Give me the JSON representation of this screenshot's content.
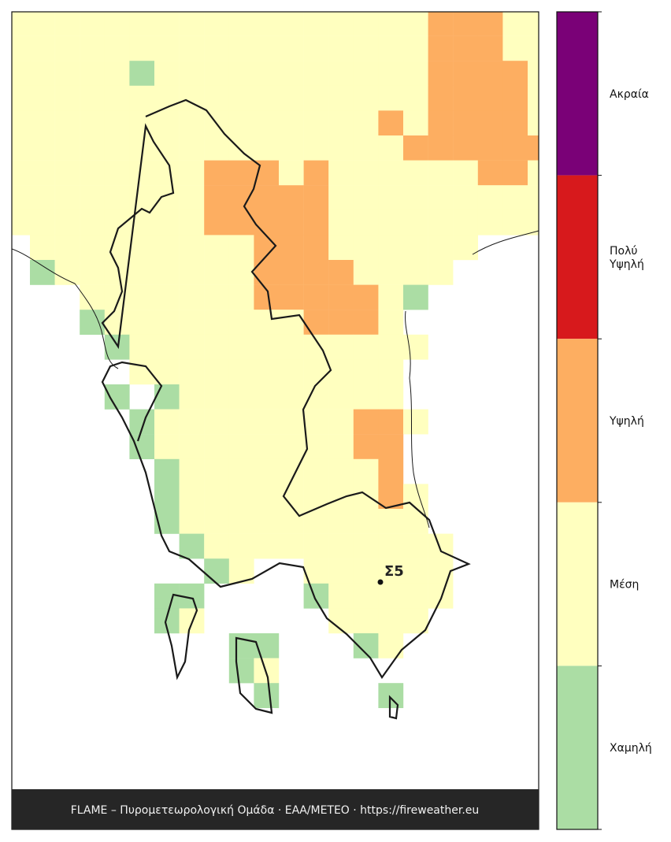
{
  "legend": {
    "levels": [
      {
        "label": [
          "Ακραία"
        ],
        "color": "#7a0177"
      },
      {
        "label": [
          "Πολύ",
          "Υψηλή"
        ],
        "color": "#d7191c"
      },
      {
        "label": [
          "Υψηλή"
        ],
        "color": "#fdae61"
      },
      {
        "label": [
          "Μέση"
        ],
        "color": "#ffffbf"
      },
      {
        "label": [
          "Χαμηλή"
        ],
        "color": "#abdda4"
      }
    ]
  },
  "station": {
    "label": "Σ5"
  },
  "footer": {
    "text": "FLAME – Πυρομετεωρολογική Ομάδα · ΕΑΑ/ΜΕΤΕΟ · https://fireweather.eu"
  }
}
